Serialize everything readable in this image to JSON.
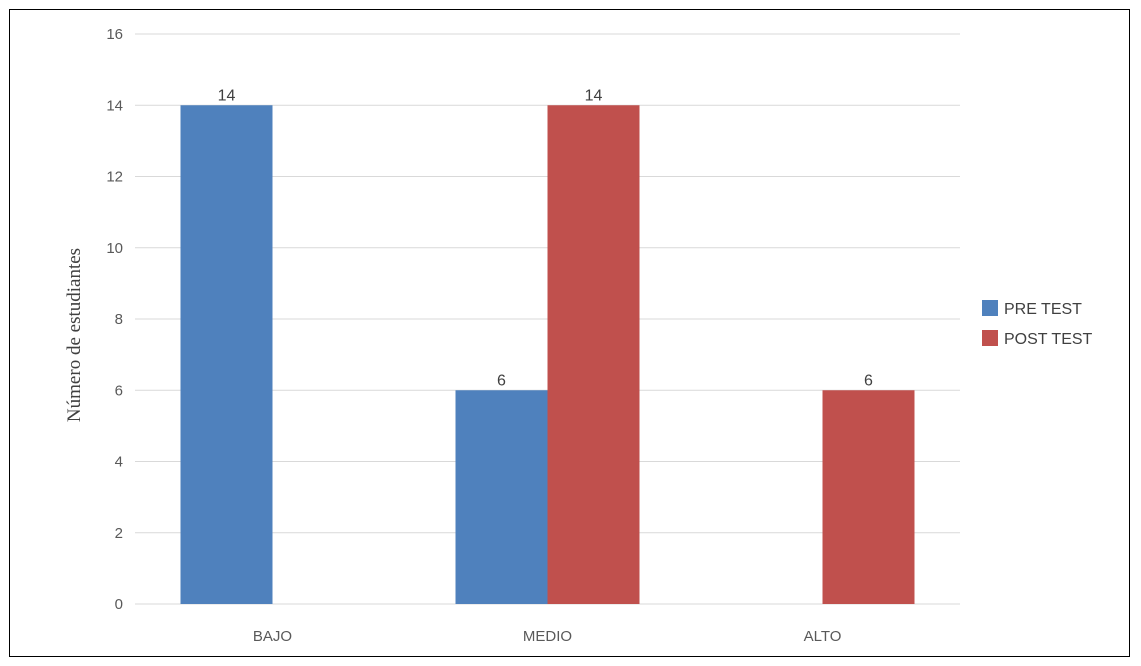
{
  "chart_data": {
    "type": "bar",
    "title": "",
    "xlabel": "",
    "ylabel": "Número de estudiantes",
    "categories": [
      "BAJO",
      "MEDIO",
      "ALTO"
    ],
    "series": [
      {
        "name": "PRE TEST",
        "values": [
          14,
          6,
          0
        ],
        "color": "#4f81bd"
      },
      {
        "name": "POST TEST",
        "values": [
          0,
          14,
          6
        ],
        "color": "#c0504d"
      }
    ],
    "ylim": [
      0,
      16
    ],
    "yticks": [
      0,
      2,
      4,
      6,
      8,
      10,
      12,
      14,
      16
    ],
    "data_labels": [
      {
        "category": "BAJO",
        "series": "PRE TEST",
        "text": "14"
      },
      {
        "category": "MEDIO",
        "series": "PRE TEST",
        "text": "6"
      },
      {
        "category": "MEDIO",
        "series": "POST TEST",
        "text": "14"
      },
      {
        "category": "ALTO",
        "series": "POST TEST",
        "text": "6"
      }
    ],
    "grid": true,
    "gridline_color": "#d9d9d9",
    "legend_position": "right"
  }
}
